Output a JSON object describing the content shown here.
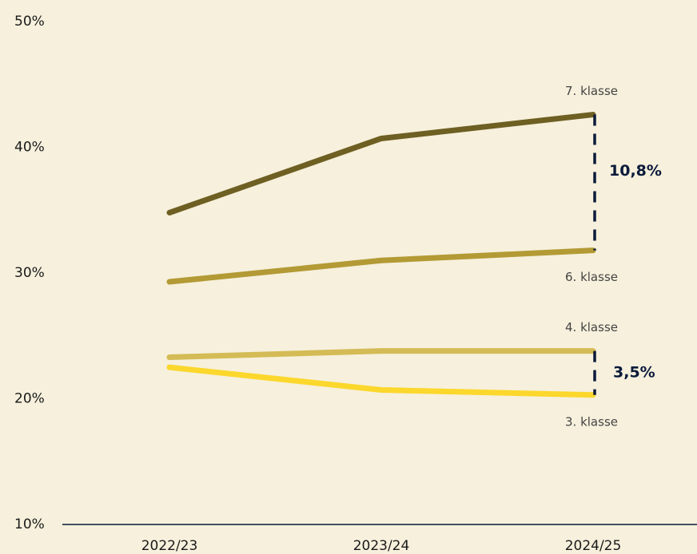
{
  "chart_data": {
    "type": "line",
    "categories": [
      "2022/23",
      "2023/24",
      "2024/25"
    ],
    "series": [
      {
        "name": "7. klasse",
        "color": "#6e5f22",
        "values": [
          34.8,
          40.7,
          42.6
        ]
      },
      {
        "name": "6. klasse",
        "color": "#b39a35",
        "values": [
          29.3,
          31.0,
          31.8
        ]
      },
      {
        "name": "4. klasse",
        "color": "#d4bb55",
        "values": [
          23.3,
          23.8,
          23.8
        ]
      },
      {
        "name": "3. klasse",
        "color": "#fcd72c",
        "values": [
          22.5,
          20.7,
          20.3
        ]
      }
    ],
    "ylim": [
      10,
      50
    ],
    "yticks": [
      {
        "value": 10,
        "label": "10%"
      },
      {
        "value": 20,
        "label": "20%"
      },
      {
        "value": 30,
        "label": "30%"
      },
      {
        "value": 40,
        "label": "40%"
      },
      {
        "value": 50,
        "label": "50%"
      }
    ],
    "annotations": [
      {
        "text": "10,8%"
      },
      {
        "text": "3,5%"
      }
    ]
  }
}
